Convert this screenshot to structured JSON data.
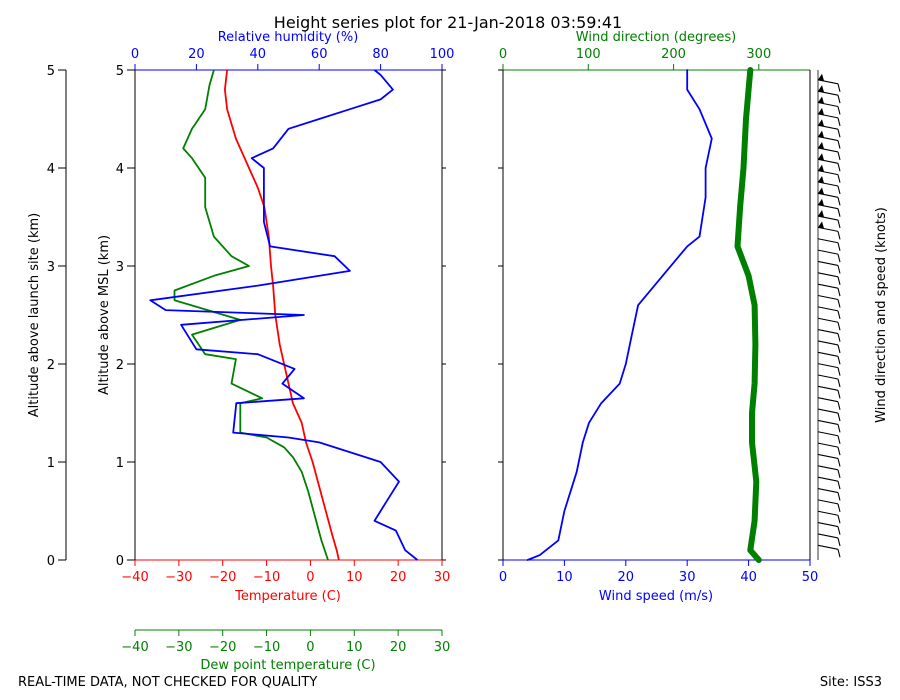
{
  "colors": {
    "temperature": "#ff0000",
    "dewpoint": "#008000",
    "humidity": "#0000ff",
    "wind_speed": "#0000ff",
    "wind_direction": "#008000",
    "axis": "#000000",
    "barb": "#000000"
  },
  "footer": {
    "quality_note": "REAL-TIME DATA, NOT CHECKED FOR QUALITY",
    "site": "Site: ISS3"
  },
  "chart_data": [
    {
      "id": "thermo",
      "type": "line",
      "title": "Height series plot for 21-Jan-2018 03:59:41",
      "ylabel_outer": "Altitude above launch site (km)",
      "ylabel": "Altitude above MSL (km)",
      "ylim": [
        0,
        5
      ],
      "y_ticks": [
        "0",
        "1",
        "2",
        "3",
        "4",
        "5"
      ],
      "axes": {
        "temperature": {
          "label": "Temperature (C)",
          "lim": [
            -40,
            30
          ],
          "ticks": [
            "−40",
            "−30",
            "−20",
            "−10",
            "0",
            "10",
            "20",
            "30"
          ]
        },
        "dewpoint": {
          "label": "Dew point temperature (C)",
          "lim": [
            -40,
            30
          ],
          "ticks": [
            "−40",
            "−30",
            "−20",
            "−10",
            "0",
            "10",
            "20",
            "30"
          ]
        },
        "humidity": {
          "label": "Relative humidity (%)",
          "lim": [
            0,
            100
          ],
          "ticks": [
            "0",
            "20",
            "40",
            "60",
            "80",
            "100"
          ]
        }
      },
      "series": [
        {
          "name": "Temperature",
          "axis": "temperature",
          "points": [
            [
              6.5,
              0
            ],
            [
              6,
              0.1
            ],
            [
              5,
              0.25
            ],
            [
              3.5,
              0.5
            ],
            [
              2,
              0.75
            ],
            [
              0.5,
              1
            ],
            [
              -1,
              1.2
            ],
            [
              -2,
              1.4
            ],
            [
              -4,
              1.6
            ],
            [
              -5,
              1.8
            ],
            [
              -6,
              2
            ],
            [
              -7,
              2.2
            ],
            [
              -8,
              2.5
            ],
            [
              -8.5,
              2.8
            ],
            [
              -9,
              3
            ],
            [
              -9.5,
              3.3
            ],
            [
              -10.5,
              3.6
            ],
            [
              -12,
              3.8
            ],
            [
              -14,
              4
            ],
            [
              -17,
              4.3
            ],
            [
              -19,
              4.6
            ],
            [
              -19.5,
              4.8
            ],
            [
              -19,
              5
            ]
          ]
        },
        {
          "name": "Dew point",
          "axis": "dewpoint",
          "points": [
            [
              4,
              0
            ],
            [
              2.5,
              0.2
            ],
            [
              1,
              0.45
            ],
            [
              -0.5,
              0.7
            ],
            [
              -2,
              0.9
            ],
            [
              -4,
              1.05
            ],
            [
              -6,
              1.15
            ],
            [
              -10,
              1.25
            ],
            [
              -16,
              1.3
            ],
            [
              -16,
              1.6
            ],
            [
              -11,
              1.65
            ],
            [
              -18,
              1.8
            ],
            [
              -17,
              2.05
            ],
            [
              -24,
              2.1
            ],
            [
              -27,
              2.3
            ],
            [
              -16,
              2.45
            ],
            [
              -31,
              2.65
            ],
            [
              -31,
              2.75
            ],
            [
              -22,
              2.9
            ],
            [
              -14,
              3
            ],
            [
              -18,
              3.1
            ],
            [
              -22,
              3.3
            ],
            [
              -24,
              3.6
            ],
            [
              -24,
              3.9
            ],
            [
              -27,
              4.1
            ],
            [
              -29,
              4.2
            ],
            [
              -27,
              4.4
            ],
            [
              -24,
              4.6
            ],
            [
              -23,
              4.85
            ],
            [
              -22,
              5
            ]
          ]
        },
        {
          "name": "Relative humidity",
          "axis": "humidity",
          "points": [
            [
              92,
              0
            ],
            [
              88,
              0.1
            ],
            [
              85,
              0.3
            ],
            [
              78,
              0.4
            ],
            [
              82,
              0.6
            ],
            [
              86,
              0.8
            ],
            [
              80,
              1
            ],
            [
              60,
              1.2
            ],
            [
              50,
              1.25
            ],
            [
              32,
              1.3
            ],
            [
              33,
              1.6
            ],
            [
              55,
              1.65
            ],
            [
              48,
              1.8
            ],
            [
              52,
              1.95
            ],
            [
              40,
              2.1
            ],
            [
              20,
              2.15
            ],
            [
              15,
              2.4
            ],
            [
              55,
              2.5
            ],
            [
              10,
              2.55
            ],
            [
              5,
              2.65
            ],
            [
              40,
              2.8
            ],
            [
              70,
              2.95
            ],
            [
              65,
              3.1
            ],
            [
              44,
              3.2
            ],
            [
              42,
              3.45
            ],
            [
              42,
              4
            ],
            [
              38,
              4.1
            ],
            [
              45,
              4.2
            ],
            [
              50,
              4.4
            ],
            [
              60,
              4.5
            ],
            [
              70,
              4.6
            ],
            [
              80,
              4.7
            ],
            [
              84,
              4.8
            ],
            [
              80,
              4.95
            ],
            [
              78,
              5
            ]
          ]
        }
      ]
    },
    {
      "id": "wind",
      "type": "line",
      "ylim": [
        0,
        5
      ],
      "axes": {
        "wind_speed": {
          "label": "Wind speed (m/s)",
          "lim": [
            0,
            50
          ],
          "ticks": [
            "0",
            "10",
            "20",
            "30",
            "40",
            "50"
          ]
        },
        "wind_direction": {
          "label": "Wind direction (degrees)",
          "lim": [
            0,
            360
          ],
          "ticks": [
            "0",
            "100",
            "200",
            "300"
          ]
        }
      },
      "barb_label": "Wind direction and speed (knots)",
      "series": [
        {
          "name": "Wind speed",
          "axis": "wind_speed",
          "points": [
            [
              4,
              0
            ],
            [
              6,
              0.05
            ],
            [
              9,
              0.2
            ],
            [
              10,
              0.5
            ],
            [
              12,
              0.9
            ],
            [
              13,
              1.2
            ],
            [
              14,
              1.4
            ],
            [
              16,
              1.6
            ],
            [
              19,
              1.8
            ],
            [
              20,
              2
            ],
            [
              21,
              2.3
            ],
            [
              22,
              2.6
            ],
            [
              26,
              2.9
            ],
            [
              30,
              3.2
            ],
            [
              32,
              3.3
            ],
            [
              33,
              3.7
            ],
            [
              33,
              4
            ],
            [
              34,
              4.3
            ],
            [
              32,
              4.6
            ],
            [
              30,
              4.8
            ],
            [
              30,
              5
            ]
          ]
        },
        {
          "name": "Wind direction",
          "axis": "wind_direction",
          "points": [
            [
              300,
              0
            ],
            [
              290,
              0.1
            ],
            [
              295,
              0.4
            ],
            [
              297,
              0.8
            ],
            [
              292,
              1.2
            ],
            [
              292,
              1.5
            ],
            [
              295,
              1.8
            ],
            [
              296,
              2.2
            ],
            [
              295,
              2.6
            ],
            [
              288,
              2.9
            ],
            [
              275,
              3.2
            ],
            [
              278,
              3.6
            ],
            [
              282,
              4
            ],
            [
              285,
              4.5
            ],
            [
              290,
              5
            ]
          ]
        }
      ]
    }
  ]
}
